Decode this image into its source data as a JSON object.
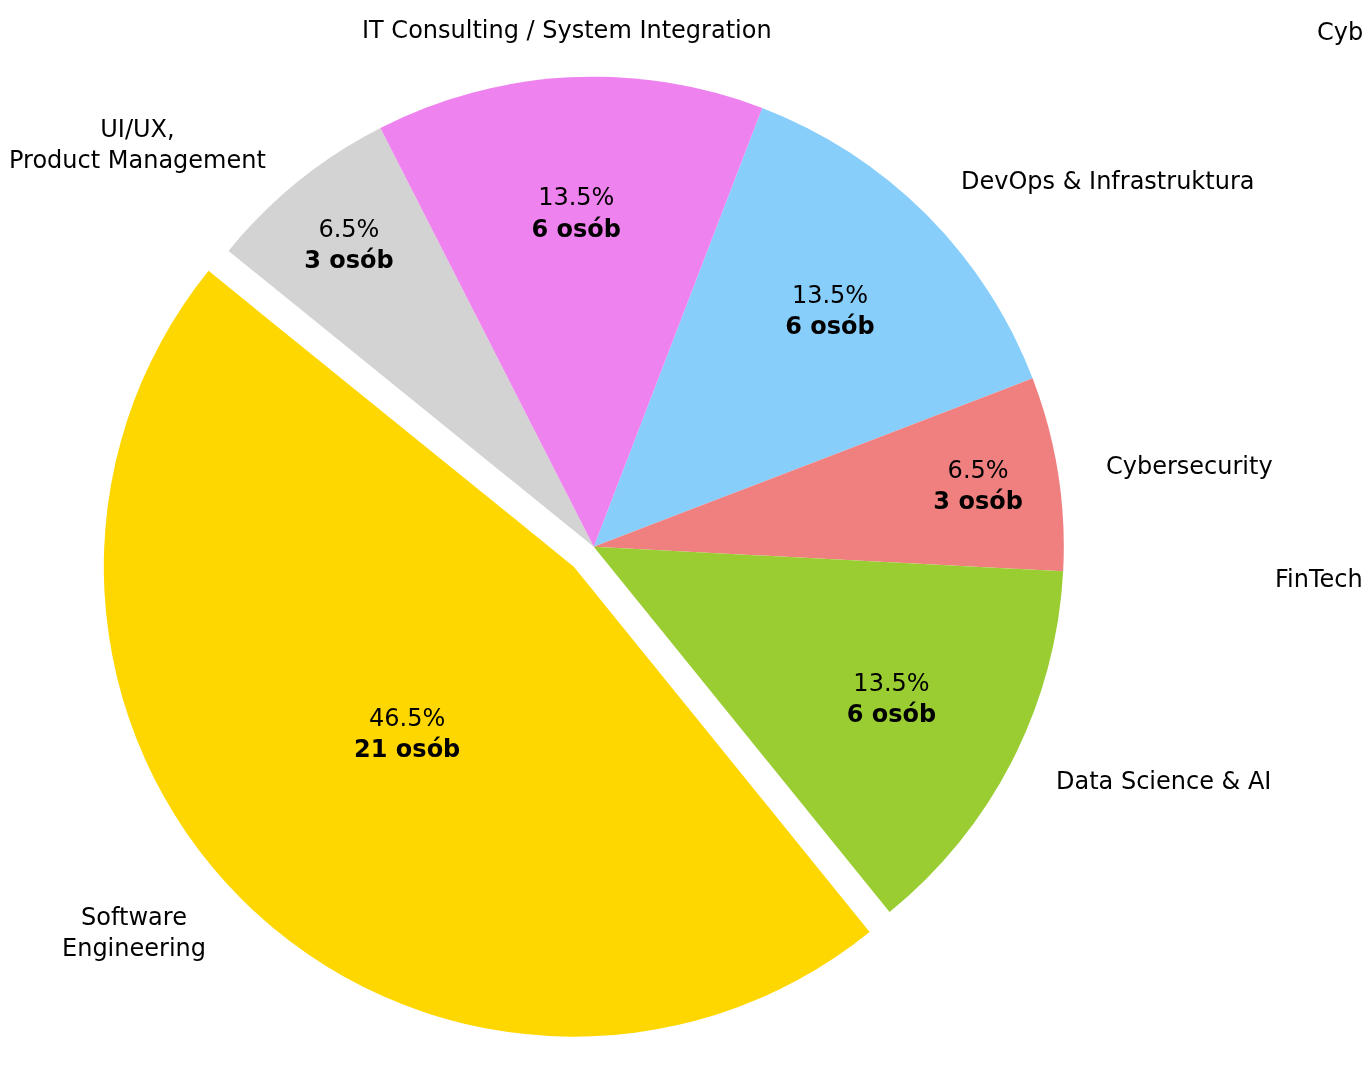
{
  "chart_data": {
    "type": "pie",
    "categories": [
      "DevOps & Infrastruktura",
      "Cybersecurity",
      "Data Science & AI",
      "Software\nEngineering",
      "UI/UX,\nProduct Management",
      "IT Consulting / System Integration"
    ],
    "values": [
      6,
      3,
      6,
      21,
      3,
      6
    ],
    "colors": [
      "#87cefa",
      "#f08080",
      "#9acd32",
      "#ffd700",
      "#d3d3d3",
      "#ee82ee"
    ],
    "value_labels": [
      "13.5%\n6 osób",
      "6.5%\n3 osób",
      "13.5%\n6 osób",
      "46.5%\n21 osób",
      "6.5%\n3 osób",
      "13.5%\n6 osób"
    ],
    "annotations": [
      "Cyb",
      "FinTech"
    ],
    "legend": false
  }
}
